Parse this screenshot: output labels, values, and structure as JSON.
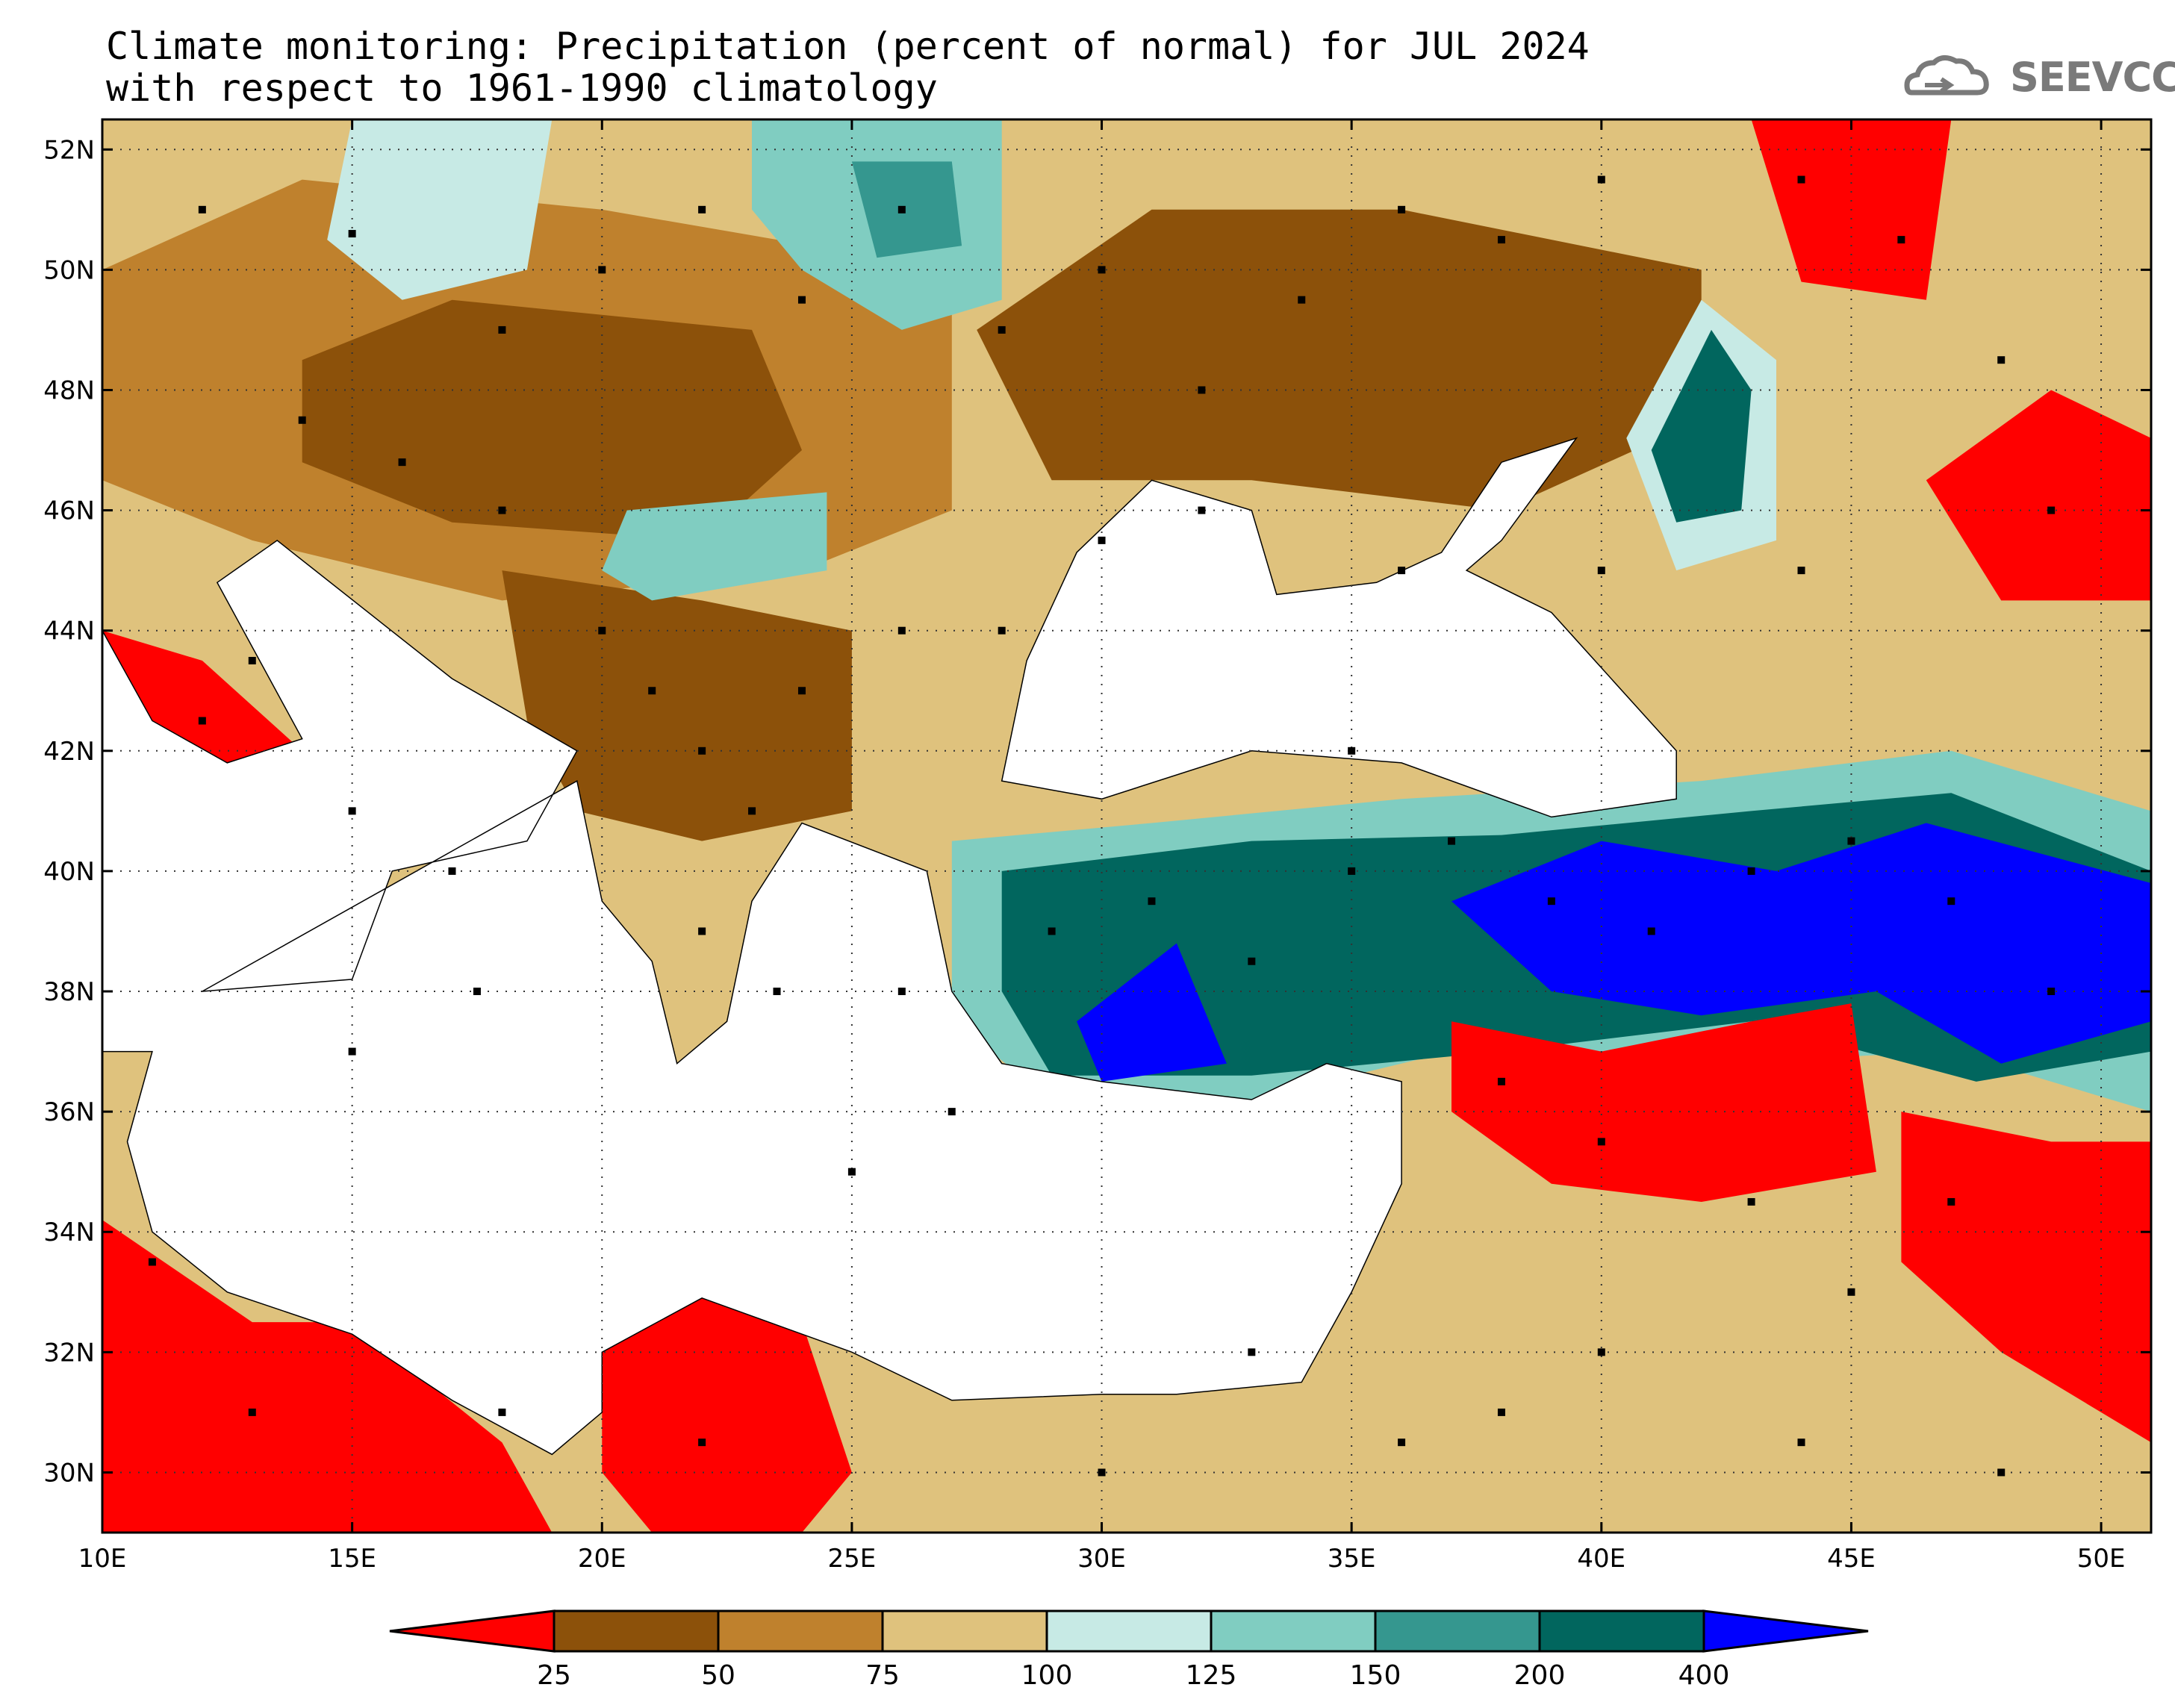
{
  "title": {
    "line1": "Climate monitoring: Precipitation (percent of normal) for JUL 2024",
    "line2": "with respect to 1961-1990 climatology"
  },
  "logo": {
    "text": "SEEVCCC",
    "icon": "cloud-icon"
  },
  "map": {
    "lon_range": [
      10,
      51
    ],
    "lat_range": [
      29,
      52.5
    ],
    "x_ticks": [
      {
        "value": 10,
        "label": "10E"
      },
      {
        "value": 15,
        "label": "15E"
      },
      {
        "value": 20,
        "label": "20E"
      },
      {
        "value": 25,
        "label": "25E"
      },
      {
        "value": 30,
        "label": "30E"
      },
      {
        "value": 35,
        "label": "35E"
      },
      {
        "value": 40,
        "label": "40E"
      },
      {
        "value": 45,
        "label": "45E"
      },
      {
        "value": 50,
        "label": "50E"
      }
    ],
    "y_ticks": [
      {
        "value": 30,
        "label": "30N"
      },
      {
        "value": 32,
        "label": "32N"
      },
      {
        "value": 34,
        "label": "34N"
      },
      {
        "value": 36,
        "label": "36N"
      },
      {
        "value": 38,
        "label": "38N"
      },
      {
        "value": 40,
        "label": "40N"
      },
      {
        "value": 42,
        "label": "42N"
      },
      {
        "value": 44,
        "label": "44N"
      },
      {
        "value": 46,
        "label": "46N"
      },
      {
        "value": 48,
        "label": "48N"
      },
      {
        "value": 50,
        "label": "50N"
      },
      {
        "value": 52,
        "label": "52N"
      }
    ],
    "grid": "dotted",
    "background_fill": "#dfc27d"
  },
  "colorbar": {
    "bins": [
      {
        "color": "#ff0000"
      },
      {
        "color": "#8c510a"
      },
      {
        "color": "#bf812d"
      },
      {
        "color": "#dfc27d"
      },
      {
        "color": "#c7eae5"
      },
      {
        "color": "#80cdc1"
      },
      {
        "color": "#35978f"
      },
      {
        "color": "#01665e"
      },
      {
        "color": "#0000ff"
      }
    ],
    "labels": [
      "25",
      "50",
      "75",
      "100",
      "125",
      "150",
      "200",
      "400"
    ]
  },
  "regions": [
    {
      "name": "dry-central-europe",
      "color": "#bf812d",
      "pts": [
        [
          10,
          50
        ],
        [
          14,
          51.5
        ],
        [
          20,
          51
        ],
        [
          27,
          50
        ],
        [
          27,
          46
        ],
        [
          24,
          45
        ],
        [
          18,
          44.5
        ],
        [
          13,
          45.5
        ],
        [
          10,
          46.5
        ]
      ]
    },
    {
      "name": "very-dry-pannonia",
      "color": "#8c510a",
      "pts": [
        [
          14,
          48.5
        ],
        [
          17,
          49.5
        ],
        [
          23,
          49
        ],
        [
          24,
          47
        ],
        [
          22,
          45.5
        ],
        [
          17,
          45.8
        ],
        [
          14,
          46.8
        ]
      ]
    },
    {
      "name": "very-dry-balkans",
      "color": "#8c510a",
      "pts": [
        [
          18,
          45
        ],
        [
          22,
          44.5
        ],
        [
          25,
          44
        ],
        [
          25,
          41
        ],
        [
          22,
          40.5
        ],
        [
          19.5,
          41
        ],
        [
          18.5,
          42.5
        ]
      ]
    },
    {
      "name": "wet-poland",
      "color": "#80cdc1",
      "pts": [
        [
          23,
          52.5
        ],
        [
          28,
          52.5
        ],
        [
          28,
          49.5
        ],
        [
          26,
          49
        ],
        [
          24,
          50
        ],
        [
          23,
          51
        ]
      ]
    },
    {
      "name": "wet-poland-core",
      "color": "#35978f",
      "pts": [
        [
          25,
          51.8
        ],
        [
          27,
          51.8
        ],
        [
          27.2,
          50.4
        ],
        [
          25.5,
          50.2
        ]
      ]
    },
    {
      "name": "wet-czech",
      "color": "#c7eae5",
      "pts": [
        [
          15,
          52.5
        ],
        [
          19,
          52.5
        ],
        [
          18.5,
          50
        ],
        [
          16,
          49.5
        ],
        [
          14.5,
          50.5
        ]
      ]
    },
    {
      "name": "wet-hungary-south",
      "color": "#80cdc1",
      "pts": [
        [
          20.5,
          46
        ],
        [
          24.5,
          46.3
        ],
        [
          24.5,
          45
        ],
        [
          21,
          44.5
        ],
        [
          20,
          45
        ]
      ]
    },
    {
      "name": "dry-ukraine-red",
      "color": "#ff0000",
      "pts": [
        [
          29,
          48.5
        ],
        [
          32,
          49.8
        ],
        [
          35.5,
          50
        ],
        [
          38,
          50
        ],
        [
          41,
          48.6
        ],
        [
          38,
          47.5
        ],
        [
          36,
          48.5
        ],
        [
          33,
          48.5
        ],
        [
          30,
          47.5
        ]
      ]
    },
    {
      "name": "dry-ukraine-ring",
      "color": "#8c510a",
      "pts": [
        [
          27.5,
          49
        ],
        [
          31,
          51
        ],
        [
          36,
          51
        ],
        [
          42,
          50
        ],
        [
          42,
          47.5
        ],
        [
          38,
          46
        ],
        [
          33,
          46.5
        ],
        [
          29,
          46.5
        ]
      ]
    },
    {
      "name": "dry-russia-red-north",
      "color": "#ff0000",
      "pts": [
        [
          43,
          52.5
        ],
        [
          47,
          52.5
        ],
        [
          46.5,
          49.5
        ],
        [
          44,
          49.8
        ]
      ]
    },
    {
      "name": "wet-don-basin",
      "color": "#c7eae5",
      "pts": [
        [
          40.5,
          47.2
        ],
        [
          42,
          49.5
        ],
        [
          43.5,
          48.5
        ],
        [
          43.5,
          45.5
        ],
        [
          41.5,
          45
        ]
      ]
    },
    {
      "name": "wet-don-core",
      "color": "#01665e",
      "pts": [
        [
          41,
          47
        ],
        [
          42.2,
          49
        ],
        [
          43,
          48
        ],
        [
          42.8,
          46
        ],
        [
          41.5,
          45.8
        ]
      ]
    },
    {
      "name": "dry-caspian-red",
      "color": "#ff0000",
      "pts": [
        [
          46.5,
          46.5
        ],
        [
          49,
          48
        ],
        [
          51,
          47.2
        ],
        [
          51,
          44.5
        ],
        [
          48,
          44.5
        ]
      ]
    },
    {
      "name": "dry-italy-red",
      "color": "#ff0000",
      "pts": [
        [
          10,
          44
        ],
        [
          12,
          43.5
        ],
        [
          14,
          42
        ],
        [
          13.5,
          41.2
        ],
        [
          11,
          42.5
        ],
        [
          10,
          43
        ]
      ]
    },
    {
      "name": "wet-anatolia-outer",
      "color": "#80cdc1",
      "pts": [
        [
          27,
          40.5
        ],
        [
          31,
          40.8
        ],
        [
          36,
          41.2
        ],
        [
          42,
          41.5
        ],
        [
          47,
          42
        ],
        [
          51,
          41
        ],
        [
          51,
          36
        ],
        [
          47,
          37
        ],
        [
          42,
          36.8
        ],
        [
          37,
          37
        ],
        [
          33,
          36.2
        ],
        [
          29,
          36.2
        ],
        [
          27,
          37.5
        ]
      ]
    },
    {
      "name": "wet-anatolia-mid",
      "color": "#01665e",
      "pts": [
        [
          28,
          40
        ],
        [
          33,
          40.5
        ],
        [
          38,
          40.6
        ],
        [
          43,
          41
        ],
        [
          47,
          41.3
        ],
        [
          51,
          40
        ],
        [
          51,
          37
        ],
        [
          47.5,
          36.5
        ],
        [
          43,
          37.5
        ],
        [
          38,
          37
        ],
        [
          33,
          36.6
        ],
        [
          29,
          36.6
        ],
        [
          28,
          38
        ]
      ]
    },
    {
      "name": "wet-anatolia-blue-east",
      "color": "#0000ff",
      "pts": [
        [
          37,
          39.5
        ],
        [
          40,
          40.5
        ],
        [
          43.5,
          40
        ],
        [
          46.5,
          40.8
        ],
        [
          51,
          39.8
        ],
        [
          51,
          37.5
        ],
        [
          48,
          36.8
        ],
        [
          45.5,
          38
        ],
        [
          42,
          37.6
        ],
        [
          39,
          38
        ]
      ]
    },
    {
      "name": "wet-anatolia-blue-south",
      "color": "#0000ff",
      "pts": [
        [
          29.5,
          37.5
        ],
        [
          31.5,
          38.8
        ],
        [
          32.5,
          36.8
        ],
        [
          30,
          36.5
        ]
      ]
    },
    {
      "name": "dry-syria-red",
      "color": "#ff0000",
      "pts": [
        [
          37,
          37.5
        ],
        [
          40,
          37
        ],
        [
          43,
          37.5
        ],
        [
          45,
          37.8
        ],
        [
          45.5,
          35
        ],
        [
          42,
          34.5
        ],
        [
          39,
          34.8
        ],
        [
          37,
          36
        ]
      ]
    },
    {
      "name": "dry-iraq-red",
      "color": "#ff0000",
      "pts": [
        [
          46,
          36
        ],
        [
          49,
          35.5
        ],
        [
          51,
          35.5
        ],
        [
          51,
          30.5
        ],
        [
          48,
          32
        ],
        [
          46,
          33.5
        ]
      ]
    },
    {
      "name": "dry-libya-red",
      "color": "#ff0000",
      "pts": [
        [
          10,
          34.2
        ],
        [
          13,
          32.5
        ],
        [
          15,
          32.5
        ],
        [
          18,
          30.5
        ],
        [
          19,
          29
        ],
        [
          10,
          29
        ]
      ]
    },
    {
      "name": "dry-cyrenaica-red",
      "color": "#ff0000",
      "pts": [
        [
          20,
          32
        ],
        [
          22,
          33
        ],
        [
          24,
          32.5
        ],
        [
          25,
          30
        ],
        [
          24,
          29
        ],
        [
          21,
          29
        ],
        [
          20,
          30
        ]
      ]
    }
  ],
  "seas": [
    {
      "name": "mediterranean-sea",
      "pts": [
        [
          12,
          38
        ],
        [
          15,
          38.2
        ],
        [
          15.8,
          40
        ],
        [
          18.5,
          40.5
        ],
        [
          19.5,
          42
        ],
        [
          17,
          43.2
        ],
        [
          13.5,
          45.5
        ],
        [
          12.3,
          44.8
        ],
        [
          14,
          42.2
        ],
        [
          12.5,
          41.8
        ],
        [
          11,
          42.5
        ],
        [
          10,
          44
        ],
        [
          10,
          37
        ],
        [
          11,
          37
        ],
        [
          10.5,
          35.5
        ],
        [
          11,
          34
        ],
        [
          12.5,
          33
        ],
        [
          15,
          32.3
        ],
        [
          17,
          31.2
        ],
        [
          19,
          30.3
        ],
        [
          20,
          31
        ],
        [
          20,
          32
        ],
        [
          22,
          32.9
        ],
        [
          25,
          32
        ],
        [
          27,
          31.2
        ],
        [
          30,
          31.3
        ],
        [
          31.5,
          31.3
        ],
        [
          34,
          31.5
        ],
        [
          35,
          33
        ],
        [
          36,
          34.8
        ],
        [
          36,
          36.5
        ],
        [
          34.5,
          36.8
        ],
        [
          33,
          36.2
        ],
        [
          30,
          36.5
        ],
        [
          28,
          36.8
        ],
        [
          27,
          38
        ],
        [
          26.5,
          40
        ],
        [
          24,
          40.8
        ],
        [
          23,
          39.5
        ],
        [
          22.5,
          37.5
        ],
        [
          21.5,
          36.8
        ],
        [
          21,
          38.5
        ],
        [
          20,
          39.5
        ],
        [
          19.5,
          41.5
        ]
      ]
    },
    {
      "name": "black-sea",
      "pts": [
        [
          28,
          41.5
        ],
        [
          28.5,
          43.5
        ],
        [
          29.5,
          45.3
        ],
        [
          31,
          46.5
        ],
        [
          33,
          46
        ],
        [
          33.5,
          44.6
        ],
        [
          35.5,
          44.8
        ],
        [
          36.8,
          45.3
        ],
        [
          38,
          46.8
        ],
        [
          39.5,
          47.2
        ],
        [
          38,
          45.5
        ],
        [
          37.3,
          45
        ],
        [
          39,
          44.3
        ],
        [
          41.5,
          42
        ],
        [
          41.5,
          41.2
        ],
        [
          39,
          40.9
        ],
        [
          36,
          41.8
        ],
        [
          33,
          42
        ],
        [
          30,
          41.2
        ]
      ]
    }
  ],
  "stations": [
    [
      12,
      51
    ],
    [
      15,
      50.6
    ],
    [
      18,
      49
    ],
    [
      20,
      50
    ],
    [
      22,
      51
    ],
    [
      24,
      49.5
    ],
    [
      26,
      51
    ],
    [
      28,
      49
    ],
    [
      30,
      50
    ],
    [
      32,
      48
    ],
    [
      34,
      49.5
    ],
    [
      36,
      51
    ],
    [
      38,
      50.5
    ],
    [
      40,
      51.5
    ],
    [
      44,
      51.5
    ],
    [
      46,
      50.5
    ],
    [
      48,
      48.5
    ],
    [
      49,
      46
    ],
    [
      44,
      45
    ],
    [
      40,
      45
    ],
    [
      36,
      45
    ],
    [
      14,
      47.5
    ],
    [
      16,
      46.8
    ],
    [
      18,
      46
    ],
    [
      20,
      44
    ],
    [
      21,
      43
    ],
    [
      22,
      42
    ],
    [
      23,
      41
    ],
    [
      24,
      43
    ],
    [
      26,
      44
    ],
    [
      28,
      44
    ],
    [
      30,
      45.5
    ],
    [
      32,
      46
    ],
    [
      13,
      43.5
    ],
    [
      12,
      42.5
    ],
    [
      15,
      41
    ],
    [
      17,
      40
    ],
    [
      17.5,
      38
    ],
    [
      15,
      37
    ],
    [
      22,
      39
    ],
    [
      23.5,
      38
    ],
    [
      25,
      35
    ],
    [
      29,
      39
    ],
    [
      31,
      39.5
    ],
    [
      33,
      38.5
    ],
    [
      35,
      40
    ],
    [
      37,
      40.5
    ],
    [
      39,
      39.5
    ],
    [
      41,
      39
    ],
    [
      43,
      40
    ],
    [
      45,
      40.5
    ],
    [
      47,
      39.5
    ],
    [
      49,
      38
    ],
    [
      38,
      36.5
    ],
    [
      40,
      35.5
    ],
    [
      43,
      34.5
    ],
    [
      45,
      33
    ],
    [
      47,
      34.5
    ],
    [
      40,
      32
    ],
    [
      38,
      31
    ],
    [
      36,
      30.5
    ],
    [
      33,
      32
    ],
    [
      30,
      30
    ],
    [
      22,
      30.5
    ],
    [
      18,
      31
    ],
    [
      13,
      31
    ],
    [
      11,
      33.5
    ],
    [
      48,
      30
    ],
    [
      44,
      30.5
    ],
    [
      35,
      42
    ],
    [
      26,
      38
    ],
    [
      27,
      36
    ]
  ]
}
